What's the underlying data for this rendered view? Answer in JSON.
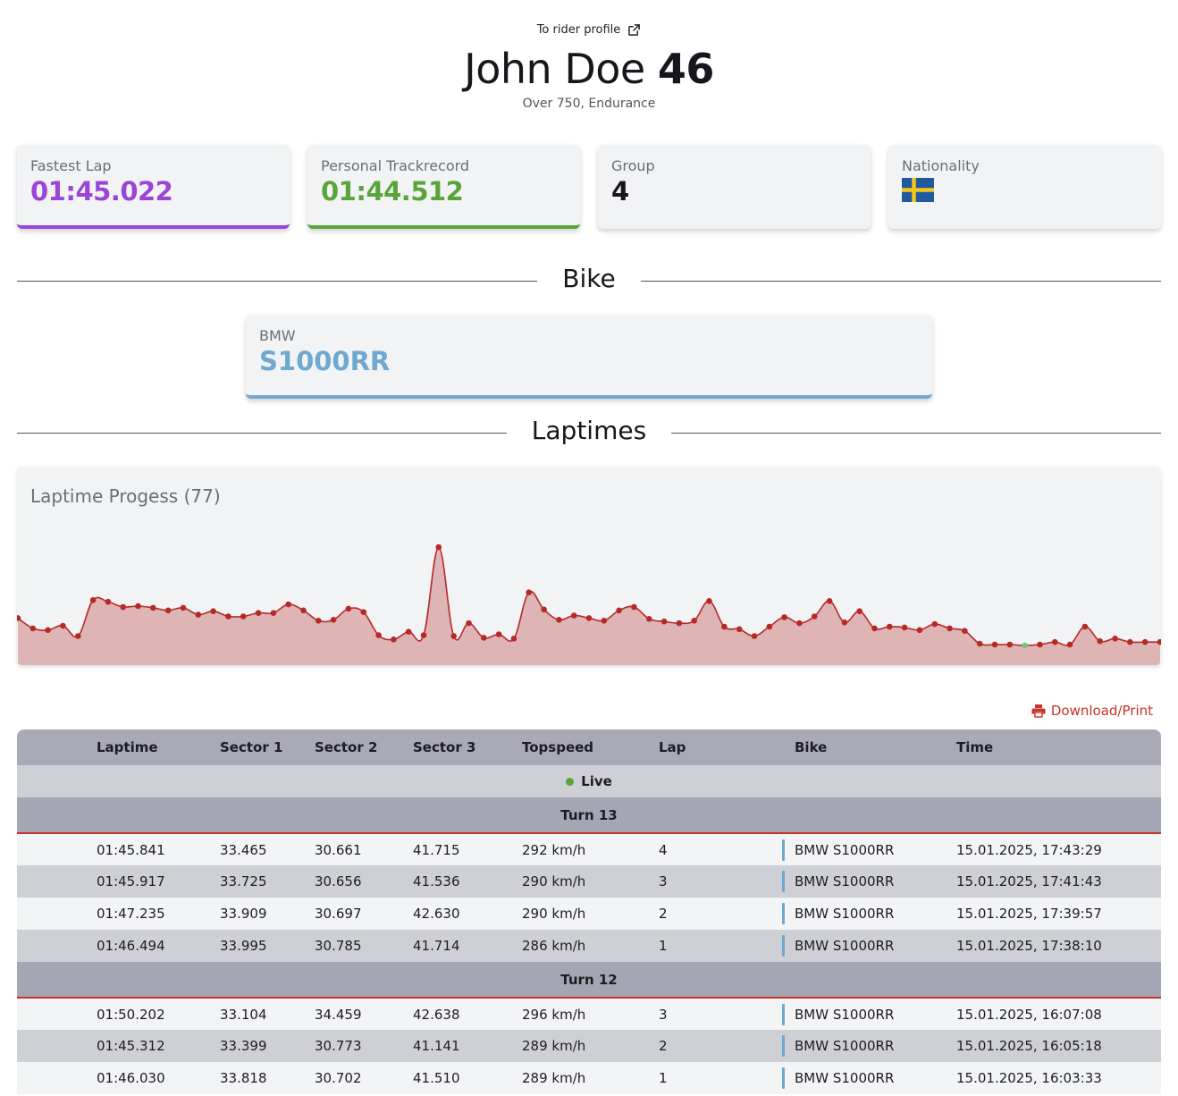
{
  "header": {
    "profile_link": "To rider profile",
    "rider_name": "John Doe",
    "rider_number": "46",
    "rider_class": "Over 750, Endurance"
  },
  "stats": {
    "fastest_lap_label": "Fastest Lap",
    "fastest_lap_value": "01:45.022",
    "trackrecord_label": "Personal Trackrecord",
    "trackrecord_value": "01:44.512",
    "group_label": "Group",
    "group_value": "4",
    "nationality_label": "Nationality",
    "nationality_flag": "sweden-flag"
  },
  "bike_section": {
    "title": "Bike",
    "make": "BMW",
    "model": "S1000RR"
  },
  "laptimes_section": {
    "title": "Laptimes"
  },
  "chart_data": {
    "type": "area",
    "title": "Laptime Progess (77)",
    "xlabel": "",
    "ylabel": "",
    "grid": false,
    "legend": "none",
    "fill_color": "#deb4b5",
    "line_color": "#b52a26",
    "highlight_color": "#7cc47a",
    "highlight_index": 67,
    "values": [
      108.2,
      107.0,
      106.8,
      107.3,
      106.1,
      110.3,
      110.1,
      109.5,
      109.6,
      109.4,
      109.1,
      109.4,
      108.6,
      109.0,
      108.4,
      108.4,
      108.8,
      108.8,
      109.8,
      109.1,
      107.9,
      108.0,
      109.3,
      108.9,
      106.2,
      105.7,
      106.6,
      106.2,
      116.5,
      106.1,
      107.6,
      105.9,
      106.3,
      105.8,
      111.2,
      109.2,
      108.0,
      108.5,
      108.2,
      107.9,
      109.1,
      109.5,
      108.1,
      107.8,
      107.6,
      107.9,
      110.2,
      107.2,
      106.9,
      106.1,
      107.2,
      108.3,
      107.6,
      108.4,
      110.2,
      107.7,
      109.0,
      107.0,
      107.2,
      107.1,
      106.8,
      107.5,
      107.0,
      106.7,
      105.2,
      105.1,
      105.1,
      105.0,
      105.1,
      105.4,
      105.1,
      107.2,
      105.5,
      105.8,
      105.4,
      105.4,
      105.4
    ]
  },
  "download_label": "Download/Print",
  "table": {
    "columns": [
      "Laptime",
      "Sector 1",
      "Sector 2",
      "Sector 3",
      "Topspeed",
      "Lap",
      "Bike",
      "Time"
    ],
    "live_label": "Live",
    "groups": [
      {
        "turn_label": "Turn 13",
        "rows": [
          {
            "laptime": "01:45.841",
            "s1": "33.465",
            "s2": "30.661",
            "s3": "41.715",
            "topspeed": "292 km/h",
            "lap": "4",
            "bike": "BMW S1000RR",
            "time": "15.01.2025, 17:43:29"
          },
          {
            "laptime": "01:45.917",
            "s1": "33.725",
            "s2": "30.656",
            "s3": "41.536",
            "topspeed": "290 km/h",
            "lap": "3",
            "bike": "BMW S1000RR",
            "time": "15.01.2025, 17:41:43"
          },
          {
            "laptime": "01:47.235",
            "s1": "33.909",
            "s2": "30.697",
            "s3": "42.630",
            "topspeed": "290 km/h",
            "lap": "2",
            "bike": "BMW S1000RR",
            "time": "15.01.2025, 17:39:57"
          },
          {
            "laptime": "01:46.494",
            "s1": "33.995",
            "s2": "30.785",
            "s3": "41.714",
            "topspeed": "286 km/h",
            "lap": "1",
            "bike": "BMW S1000RR",
            "time": "15.01.2025, 17:38:10"
          }
        ]
      },
      {
        "turn_label": "Turn 12",
        "rows": [
          {
            "laptime": "01:50.202",
            "s1": "33.104",
            "s2": "34.459",
            "s3": "42.638",
            "topspeed": "296 km/h",
            "lap": "3",
            "bike": "BMW S1000RR",
            "time": "15.01.2025, 16:07:08"
          },
          {
            "laptime": "01:45.312",
            "s1": "33.399",
            "s2": "30.773",
            "s3": "41.141",
            "topspeed": "289 km/h",
            "lap": "2",
            "bike": "BMW S1000RR",
            "time": "15.01.2025, 16:05:18"
          },
          {
            "laptime": "01:46.030",
            "s1": "33.818",
            "s2": "30.702",
            "s3": "41.510",
            "topspeed": "289 km/h",
            "lap": "1",
            "bike": "BMW S1000RR",
            "time": "15.01.2025, 16:03:33"
          }
        ]
      }
    ]
  }
}
